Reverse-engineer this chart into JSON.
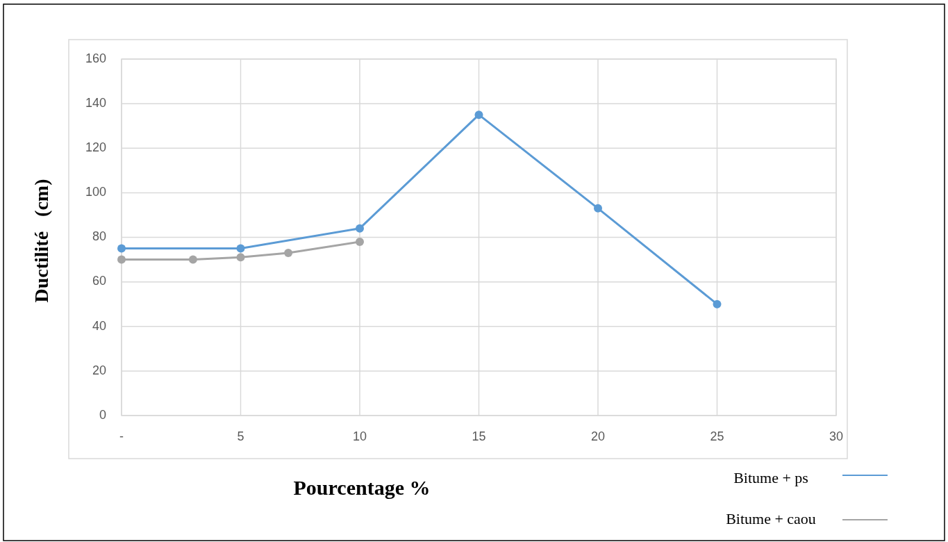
{
  "chart_data": {
    "type": "line",
    "xlabel": "Pourcentage %",
    "ylabel": "Ductilité   (cm)",
    "xlim": [
      0,
      30
    ],
    "xticks": [
      {
        "value": 0,
        "label": "-"
      },
      5,
      10,
      15,
      20,
      25,
      30
    ],
    "ylim": [
      0,
      160
    ],
    "yticks": [
      0,
      20,
      40,
      60,
      80,
      100,
      120,
      140,
      160
    ],
    "grid": true,
    "legend": "bottom right",
    "marker": "circle",
    "line_style": "solid",
    "series": [
      {
        "name": "Bitume + ps",
        "color": "#5b9bd5",
        "x": [
          0,
          5,
          10,
          15,
          20,
          25
        ],
        "values": [
          75,
          75,
          84,
          135,
          93,
          50
        ]
      },
      {
        "name": "Bitume + caou",
        "color": "#a5a5a5",
        "x": [
          0,
          3,
          5,
          7,
          10
        ],
        "values": [
          70,
          70,
          71,
          73,
          78
        ]
      }
    ]
  }
}
